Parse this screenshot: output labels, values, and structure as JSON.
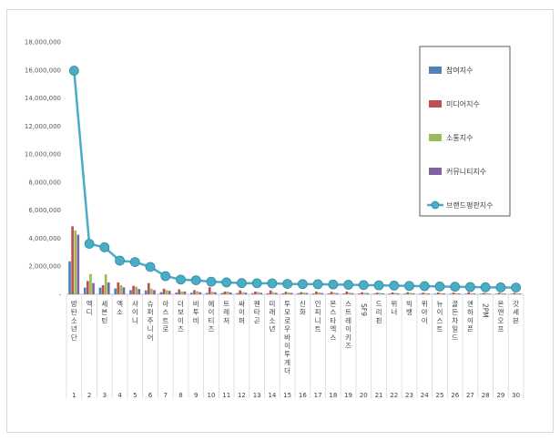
{
  "chart_data": {
    "type": "bar",
    "title": "",
    "xlabel": "",
    "ylabel": "",
    "ylim": [
      0,
      18000000
    ],
    "yticks": [
      "-",
      "2,000,000",
      "4,000,000",
      "6,000,000",
      "8,000,000",
      "10,000,000",
      "12,000,000",
      "14,000,000",
      "16,000,000",
      "18,000,000"
    ],
    "grid": false,
    "legend_position": "right",
    "categories": [
      "방탄소년단",
      "엑디",
      "세븐틴",
      "엑소",
      "샤이니",
      "슈퍼주니어",
      "아스트로",
      "더보이즈",
      "비투비",
      "에이티즈",
      "트레저",
      "싸이퍼",
      "펜타곤",
      "미래소년",
      "투모로우바이투게더",
      "신화",
      "인피니트",
      "몬스타엑스",
      "스트레이키즈",
      "SF9",
      "드리핀",
      "위너",
      "빅뱅",
      "위아이",
      "뉴이스트",
      "골든차일드",
      "엔하이픈",
      "2PM",
      "온앤오프",
      "갓세븐"
    ],
    "category_numbers": [
      "1",
      "2",
      "3",
      "4",
      "5",
      "6",
      "7",
      "8",
      "9",
      "10",
      "11",
      "12",
      "13",
      "14",
      "15",
      "16",
      "17",
      "18",
      "19",
      "20",
      "21",
      "22",
      "23",
      "24",
      "25",
      "26",
      "27",
      "28",
      "29",
      "30"
    ],
    "series": [
      {
        "name": "참여지수",
        "kind": "bar",
        "color": "#4f81bd",
        "values": [
          2350000,
          480000,
          480000,
          420000,
          300000,
          280000,
          150000,
          120000,
          110000,
          100000,
          90000,
          85000,
          80000,
          75000,
          70000,
          70000,
          65000,
          65000,
          60000,
          60000,
          55000,
          55000,
          50000,
          50000,
          50000,
          45000,
          45000,
          45000,
          40000,
          40000
        ]
      },
      {
        "name": "미디어지수",
        "kind": "bar",
        "color": "#c0504d",
        "values": [
          4850000,
          950000,
          650000,
          850000,
          600000,
          800000,
          400000,
          350000,
          300000,
          500000,
          200000,
          280000,
          200000,
          280000,
          180000,
          150000,
          200000,
          180000,
          200000,
          150000,
          120000,
          130000,
          150000,
          120000,
          130000,
          120000,
          150000,
          100000,
          110000,
          100000
        ]
      },
      {
        "name": "소통지수",
        "kind": "bar",
        "color": "#9bbb59",
        "values": [
          4550000,
          1450000,
          1420000,
          650000,
          550000,
          400000,
          300000,
          200000,
          220000,
          180000,
          200000,
          150000,
          160000,
          150000,
          140000,
          140000,
          130000,
          120000,
          120000,
          110000,
          100000,
          100000,
          100000,
          90000,
          90000,
          90000,
          80000,
          80000,
          80000,
          70000
        ]
      },
      {
        "name": "커뮤니티지수",
        "kind": "bar",
        "color": "#8064a2",
        "values": [
          4250000,
          800000,
          850000,
          500000,
          380000,
          300000,
          250000,
          200000,
          150000,
          150000,
          130000,
          120000,
          110000,
          100000,
          100000,
          90000,
          90000,
          80000,
          80000,
          80000,
          70000,
          70000,
          70000,
          60000,
          60000,
          60000,
          60000,
          50000,
          50000,
          50000
        ]
      },
      {
        "name": "브랜드평판지수",
        "kind": "line",
        "color": "#4bacc6",
        "values": [
          15950000,
          3600000,
          3350000,
          2400000,
          2300000,
          1950000,
          1300000,
          1050000,
          1000000,
          900000,
          850000,
          800000,
          790000,
          780000,
          740000,
          730000,
          720000,
          700000,
          680000,
          660000,
          640000,
          620000,
          600000,
          580000,
          560000,
          540000,
          520000,
          500000,
          490000,
          480000
        ]
      }
    ]
  }
}
